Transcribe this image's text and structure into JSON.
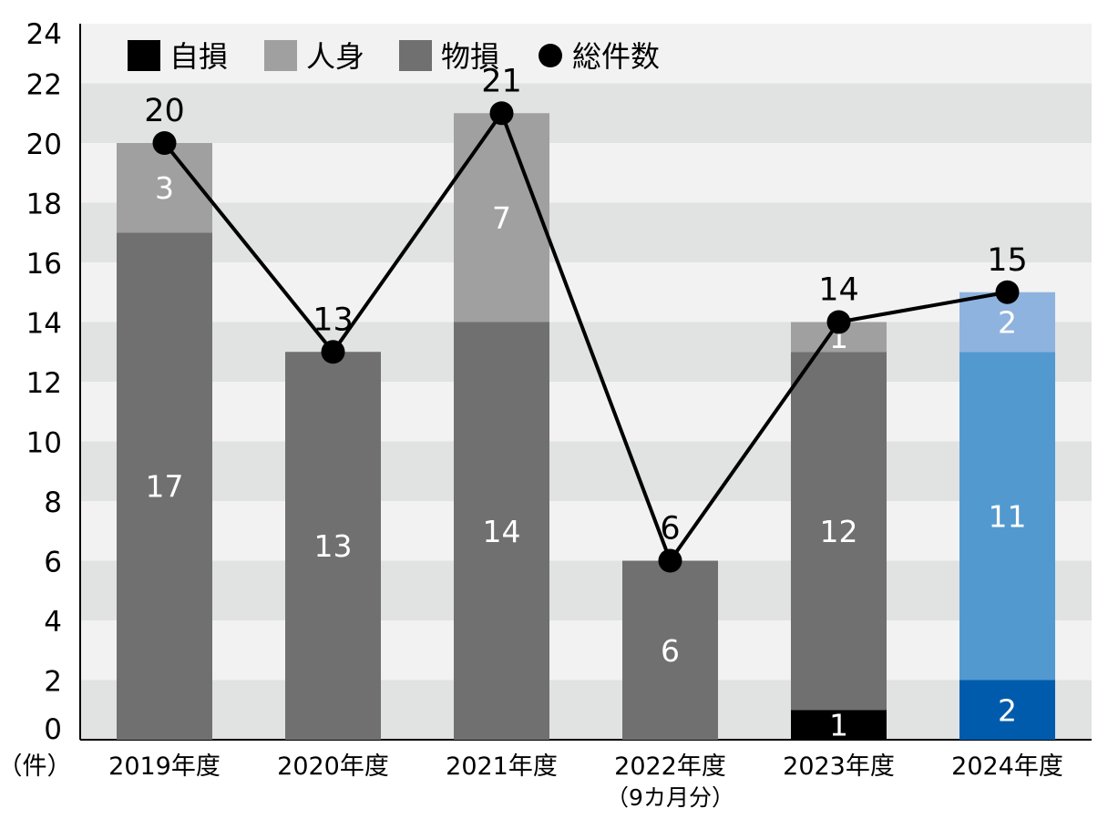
{
  "chart_data": {
    "type": "bar",
    "stacked": true,
    "categories": [
      "2019年度",
      "2020年度",
      "2021年度",
      "2022年度",
      "2023年度",
      "2024年度"
    ],
    "category_notes": [
      "",
      "",
      "",
      "（9カ月分）",
      "",
      ""
    ],
    "unit_label": "（件）",
    "series": [
      {
        "name": "自損",
        "values": [
          0,
          0,
          0,
          0,
          1,
          2
        ],
        "color": "#000000"
      },
      {
        "name": "物損",
        "values": [
          17,
          13,
          14,
          6,
          12,
          11
        ],
        "color": "#707070"
      },
      {
        "name": "人身",
        "values": [
          3,
          0,
          7,
          0,
          1,
          2
        ],
        "color": "#a0a0a0"
      }
    ],
    "line_series": {
      "name": "総件数",
      "values": [
        20,
        13,
        21,
        6,
        14,
        15
      ],
      "color": "#000000"
    },
    "highlight_colors": {
      "自損": "#005bac",
      "物損": "#5299cf",
      "人身": "#8eb3de"
    },
    "highlight_category": "2024年度",
    "legend_order": [
      "自損",
      "人身",
      "物損",
      "総件数"
    ],
    "legend_position": "top-left",
    "ylim": [
      0,
      24
    ],
    "yticks": [
      0,
      2,
      4,
      6,
      8,
      10,
      12,
      14,
      16,
      18,
      20,
      22,
      24
    ],
    "band_colors": [
      "#e1e2e2",
      "#f2f2f2"
    ],
    "title": "",
    "xlabel": "",
    "ylabel": ""
  }
}
